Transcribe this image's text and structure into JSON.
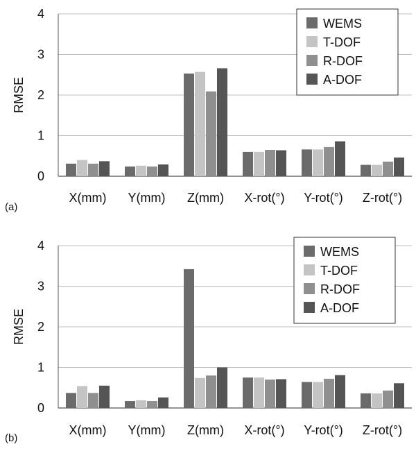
{
  "chart_data": [
    {
      "type": "bar",
      "panel_label": "(a)",
      "ylabel": "RMSE",
      "xlabel": "",
      "ylim": [
        0,
        4
      ],
      "yticks": [
        "0",
        "1",
        "2",
        "3",
        "4"
      ],
      "categories": [
        "X(mm)",
        "Y(mm)",
        "Z(mm)",
        "X-rot(°)",
        "Y-rot(°)",
        "Z-rot(°)"
      ],
      "legend_position": "top-right",
      "series": [
        {
          "name": "WEMS",
          "color": "#6b6b6b",
          "values": [
            0.31,
            0.24,
            2.53,
            0.6,
            0.66,
            0.28
          ]
        },
        {
          "name": "T-DOF",
          "color": "#c4c4c4",
          "values": [
            0.4,
            0.26,
            2.57,
            0.6,
            0.66,
            0.28
          ]
        },
        {
          "name": "R-DOF",
          "color": "#8f8f8f",
          "values": [
            0.31,
            0.24,
            2.09,
            0.65,
            0.72,
            0.36
          ]
        },
        {
          "name": "A-DOF",
          "color": "#555555",
          "values": [
            0.37,
            0.29,
            2.66,
            0.64,
            0.86,
            0.46
          ]
        }
      ]
    },
    {
      "type": "bar",
      "panel_label": "(b)",
      "ylabel": "RMSE",
      "xlabel": "",
      "ylim": [
        0,
        4
      ],
      "yticks": [
        "0",
        "1",
        "2",
        "3",
        "4"
      ],
      "categories": [
        "X(mm)",
        "Y(mm)",
        "Z(mm)",
        "X-rot(°)",
        "Y-rot(°)",
        "Z-rot(°)"
      ],
      "legend_position": "top-right",
      "series": [
        {
          "name": "WEMS",
          "color": "#6b6b6b",
          "values": [
            0.37,
            0.17,
            3.42,
            0.75,
            0.64,
            0.36
          ]
        },
        {
          "name": "T-DOF",
          "color": "#c4c4c4",
          "values": [
            0.54,
            0.19,
            0.74,
            0.75,
            0.64,
            0.36
          ]
        },
        {
          "name": "R-DOF",
          "color": "#8f8f8f",
          "values": [
            0.37,
            0.17,
            0.8,
            0.7,
            0.72,
            0.43
          ]
        },
        {
          "name": "A-DOF",
          "color": "#555555",
          "values": [
            0.55,
            0.26,
            1.0,
            0.71,
            0.81,
            0.61
          ]
        }
      ]
    }
  ]
}
